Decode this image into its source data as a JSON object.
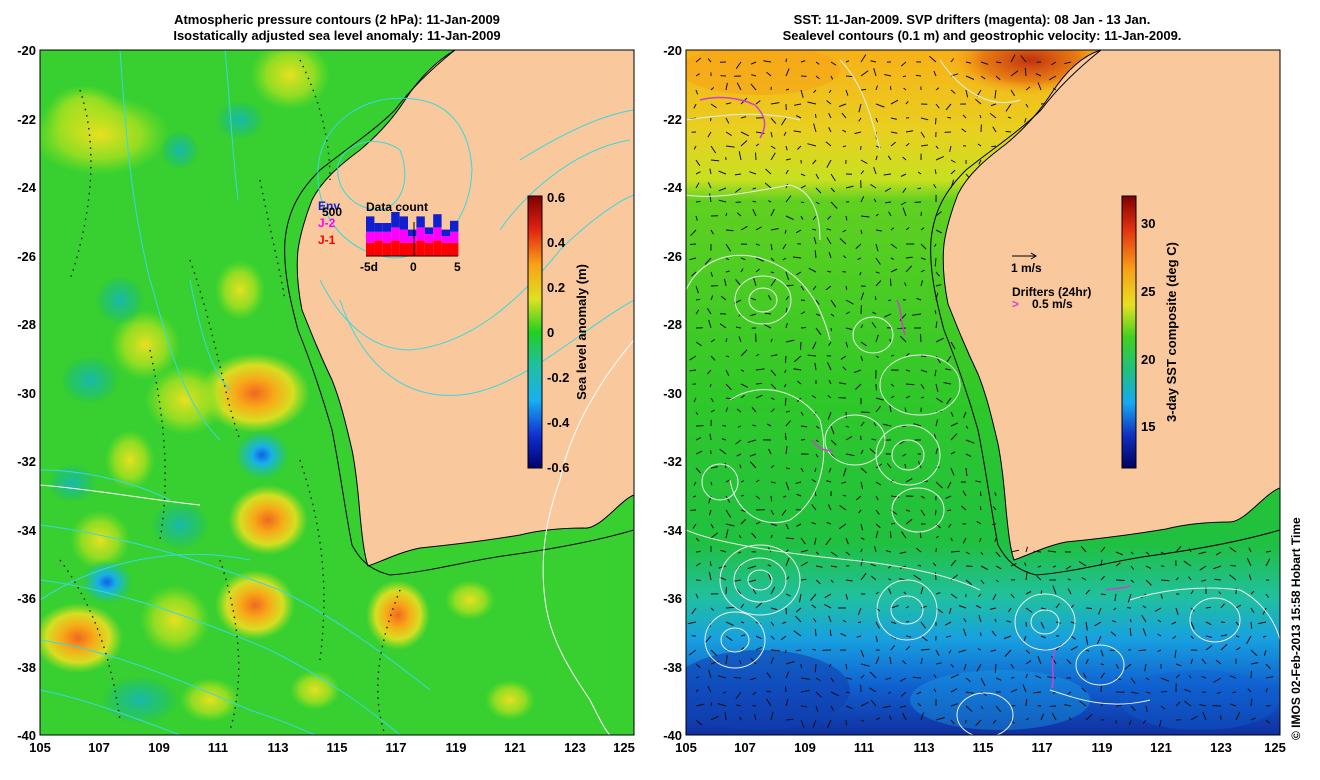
{
  "left_panel": {
    "title_line1": "Atmospheric pressure contours (2 hPa): 11-Jan-2009",
    "title_line2": "Isostatically adjusted sea level anomaly: 11-Jan-2009",
    "colorbar": {
      "label": "Sea level anomaly (m)",
      "ticks": [
        "0.6",
        "0.4",
        "0.2",
        "0",
        "-0.2",
        "-0.4",
        "-0.6"
      ],
      "range": [
        -0.6,
        0.6
      ]
    },
    "inset": {
      "title": "Data count",
      "legend": [
        "Env",
        "J-2",
        "J-1"
      ],
      "legend_colors": [
        "#1020d0",
        "#ff00ff",
        "#ff0000"
      ],
      "y_label": "500",
      "x_ticks": [
        "-5d",
        "0",
        "5"
      ],
      "bars": [
        {
          "j1": 0.3,
          "j2": 0.25,
          "env": 0.35
        },
        {
          "j1": 0.35,
          "j2": 0.2,
          "env": 0.2
        },
        {
          "j1": 0.3,
          "j2": 0.25,
          "env": 0.2
        },
        {
          "j1": 0.35,
          "j2": 0.3,
          "env": 0.35
        },
        {
          "j1": 0.3,
          "j2": 0.3,
          "env": 0.3
        },
        {
          "j1": 0.3,
          "j2": 0.15,
          "env": 0.15
        },
        {
          "j1": 0.35,
          "j2": 0.3,
          "env": 0.25
        },
        {
          "j1": 0.3,
          "j2": 0.2,
          "env": 0.15
        },
        {
          "j1": 0.35,
          "j2": 0.3,
          "env": 0.3
        },
        {
          "j1": 0.3,
          "j2": 0.15,
          "env": 0.15
        },
        {
          "j1": 0.3,
          "j2": 0.25,
          "env": 0.25
        }
      ]
    }
  },
  "right_panel": {
    "title_line1": "SST: 11-Jan-2009. SVP drifters (magenta): 08 Jan - 13 Jan.",
    "title_line2": "Sealevel contours (0.1 m) and geostrophic velocity: 11-Jan-2009.",
    "colorbar": {
      "label": "3-day SST composite (deg C)",
      "ticks": [
        "30",
        "25",
        "20",
        "15"
      ],
      "range": [
        12,
        33
      ]
    },
    "velocity_legend": "1 m/s",
    "drifters_label": "Drifters (24hr)",
    "drifters_speed": "0.5 m/s",
    "drifter_marker": ">"
  },
  "axes": {
    "x_ticks": [
      "105",
      "107",
      "109",
      "111",
      "113",
      "115",
      "117",
      "119",
      "121",
      "123",
      "125"
    ],
    "y_ticks": [
      "-20",
      "-22",
      "-24",
      "-26",
      "-28",
      "-30",
      "-32",
      "-34",
      "-36",
      "-38",
      "-40"
    ],
    "lon_range": [
      105,
      125
    ],
    "lat_range": [
      -20,
      -40
    ]
  },
  "credit": "© IMOS 02-Feb-2013 15:58 Hobart Time",
  "colors": {
    "land": "#f9c89c",
    "coast": "#000000",
    "pressure_contour": "#38d8e0",
    "sealevel_contour": "#ffffff",
    "drifter": "#d040d0",
    "ocean_mid": "#20d020"
  }
}
